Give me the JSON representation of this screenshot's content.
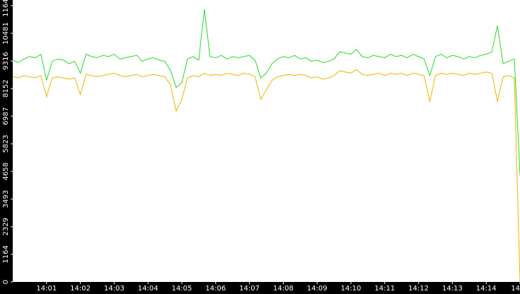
{
  "chart_data": {
    "type": "line",
    "x": [
      0,
      10,
      20,
      30,
      40,
      50,
      60,
      70,
      80,
      90,
      100,
      110,
      120,
      130,
      140,
      150,
      160,
      170,
      180,
      190,
      200,
      210,
      220,
      230,
      240,
      250,
      260,
      270,
      280,
      290,
      300,
      310,
      320,
      330,
      340,
      350,
      360,
      370,
      380,
      390,
      400,
      410,
      420,
      430,
      440,
      450,
      460,
      470,
      480,
      490,
      500,
      510,
      520,
      530,
      540,
      550,
      560,
      570,
      580,
      590,
      600,
      610,
      620,
      630,
      640,
      650,
      660,
      670,
      680,
      690,
      700,
      710,
      720,
      730,
      740,
      750,
      760,
      770,
      780,
      790,
      800,
      810,
      820,
      830,
      840,
      850,
      860,
      870,
      880,
      890,
      900
    ],
    "series": [
      {
        "color": "#22dd22",
        "values": [
          9350,
          9250,
          9400,
          9500,
          9450,
          9600,
          8500,
          9300,
          9400,
          9350,
          9200,
          9300,
          8800,
          9600,
          9500,
          9450,
          9550,
          9500,
          9600,
          9400,
          9450,
          9500,
          9550,
          9300,
          9400,
          9450,
          9350,
          9300,
          8900,
          8200,
          8400,
          9400,
          9500,
          9350,
          11500,
          9500,
          9450,
          9550,
          9400,
          9500,
          9450,
          9500,
          9550,
          9350,
          8600,
          8800,
          9200,
          9400,
          9500,
          9450,
          9550,
          9400,
          9450,
          9300,
          9350,
          9250,
          9300,
          9400,
          9700,
          9650,
          9600,
          9800,
          9500,
          9450,
          9550,
          9500,
          9450,
          9600,
          9500,
          9550,
          9450,
          9600,
          9500,
          9400,
          8700,
          9500,
          9600,
          9450,
          9550,
          9500,
          9400,
          9500,
          9450,
          9550,
          9600,
          9700,
          10800,
          9200,
          9300,
          9400,
          4500
        ]
      },
      {
        "color": "#f0b400",
        "values": [
          8650,
          8600,
          8700,
          8650,
          8600,
          8700,
          7800,
          8600,
          8650,
          8600,
          8550,
          8600,
          7900,
          8750,
          8700,
          8650,
          8700,
          8750,
          8800,
          8700,
          8650,
          8700,
          8750,
          8650,
          8700,
          8750,
          8700,
          8650,
          8300,
          7200,
          7700,
          8600,
          8700,
          8650,
          8800,
          8700,
          8750,
          8700,
          8800,
          8750,
          8700,
          8800,
          8750,
          8650,
          7700,
          8100,
          8500,
          8650,
          8700,
          8750,
          8700,
          8750,
          8700,
          8600,
          8650,
          8550,
          8600,
          8700,
          8900,
          8850,
          8800,
          8950,
          8750,
          8700,
          8750,
          8800,
          8700,
          8800,
          8750,
          8800,
          8700,
          8800,
          8750,
          8700,
          7600,
          8700,
          8800,
          8750,
          8800,
          8750,
          8700,
          8800,
          8750,
          8800,
          8850,
          8800,
          7600,
          8650,
          8700,
          8600,
          0
        ]
      }
    ],
    "xlim": [
      0,
      900
    ],
    "xticks": [
      {
        "value": 60,
        "label": "14:01"
      },
      {
        "value": 120,
        "label": "14:02"
      },
      {
        "value": 180,
        "label": "14:03"
      },
      {
        "value": 240,
        "label": "14:04"
      },
      {
        "value": 300,
        "label": "14:05"
      },
      {
        "value": 360,
        "label": "14:06"
      },
      {
        "value": 420,
        "label": "14:07"
      },
      {
        "value": 480,
        "label": "14:08"
      },
      {
        "value": 540,
        "label": "14:09"
      },
      {
        "value": 600,
        "label": "14:10"
      },
      {
        "value": 660,
        "label": "14:11"
      },
      {
        "value": 720,
        "label": "14:12"
      },
      {
        "value": 780,
        "label": "14:13"
      },
      {
        "value": 840,
        "label": "14:14"
      },
      {
        "value": 900,
        "label": "14"
      }
    ],
    "ylim": [
      0,
      11646
    ],
    "yticks": [
      0,
      1164,
      2329,
      3493,
      4658,
      5823,
      6987,
      8152,
      9316,
      10481,
      11646
    ]
  }
}
